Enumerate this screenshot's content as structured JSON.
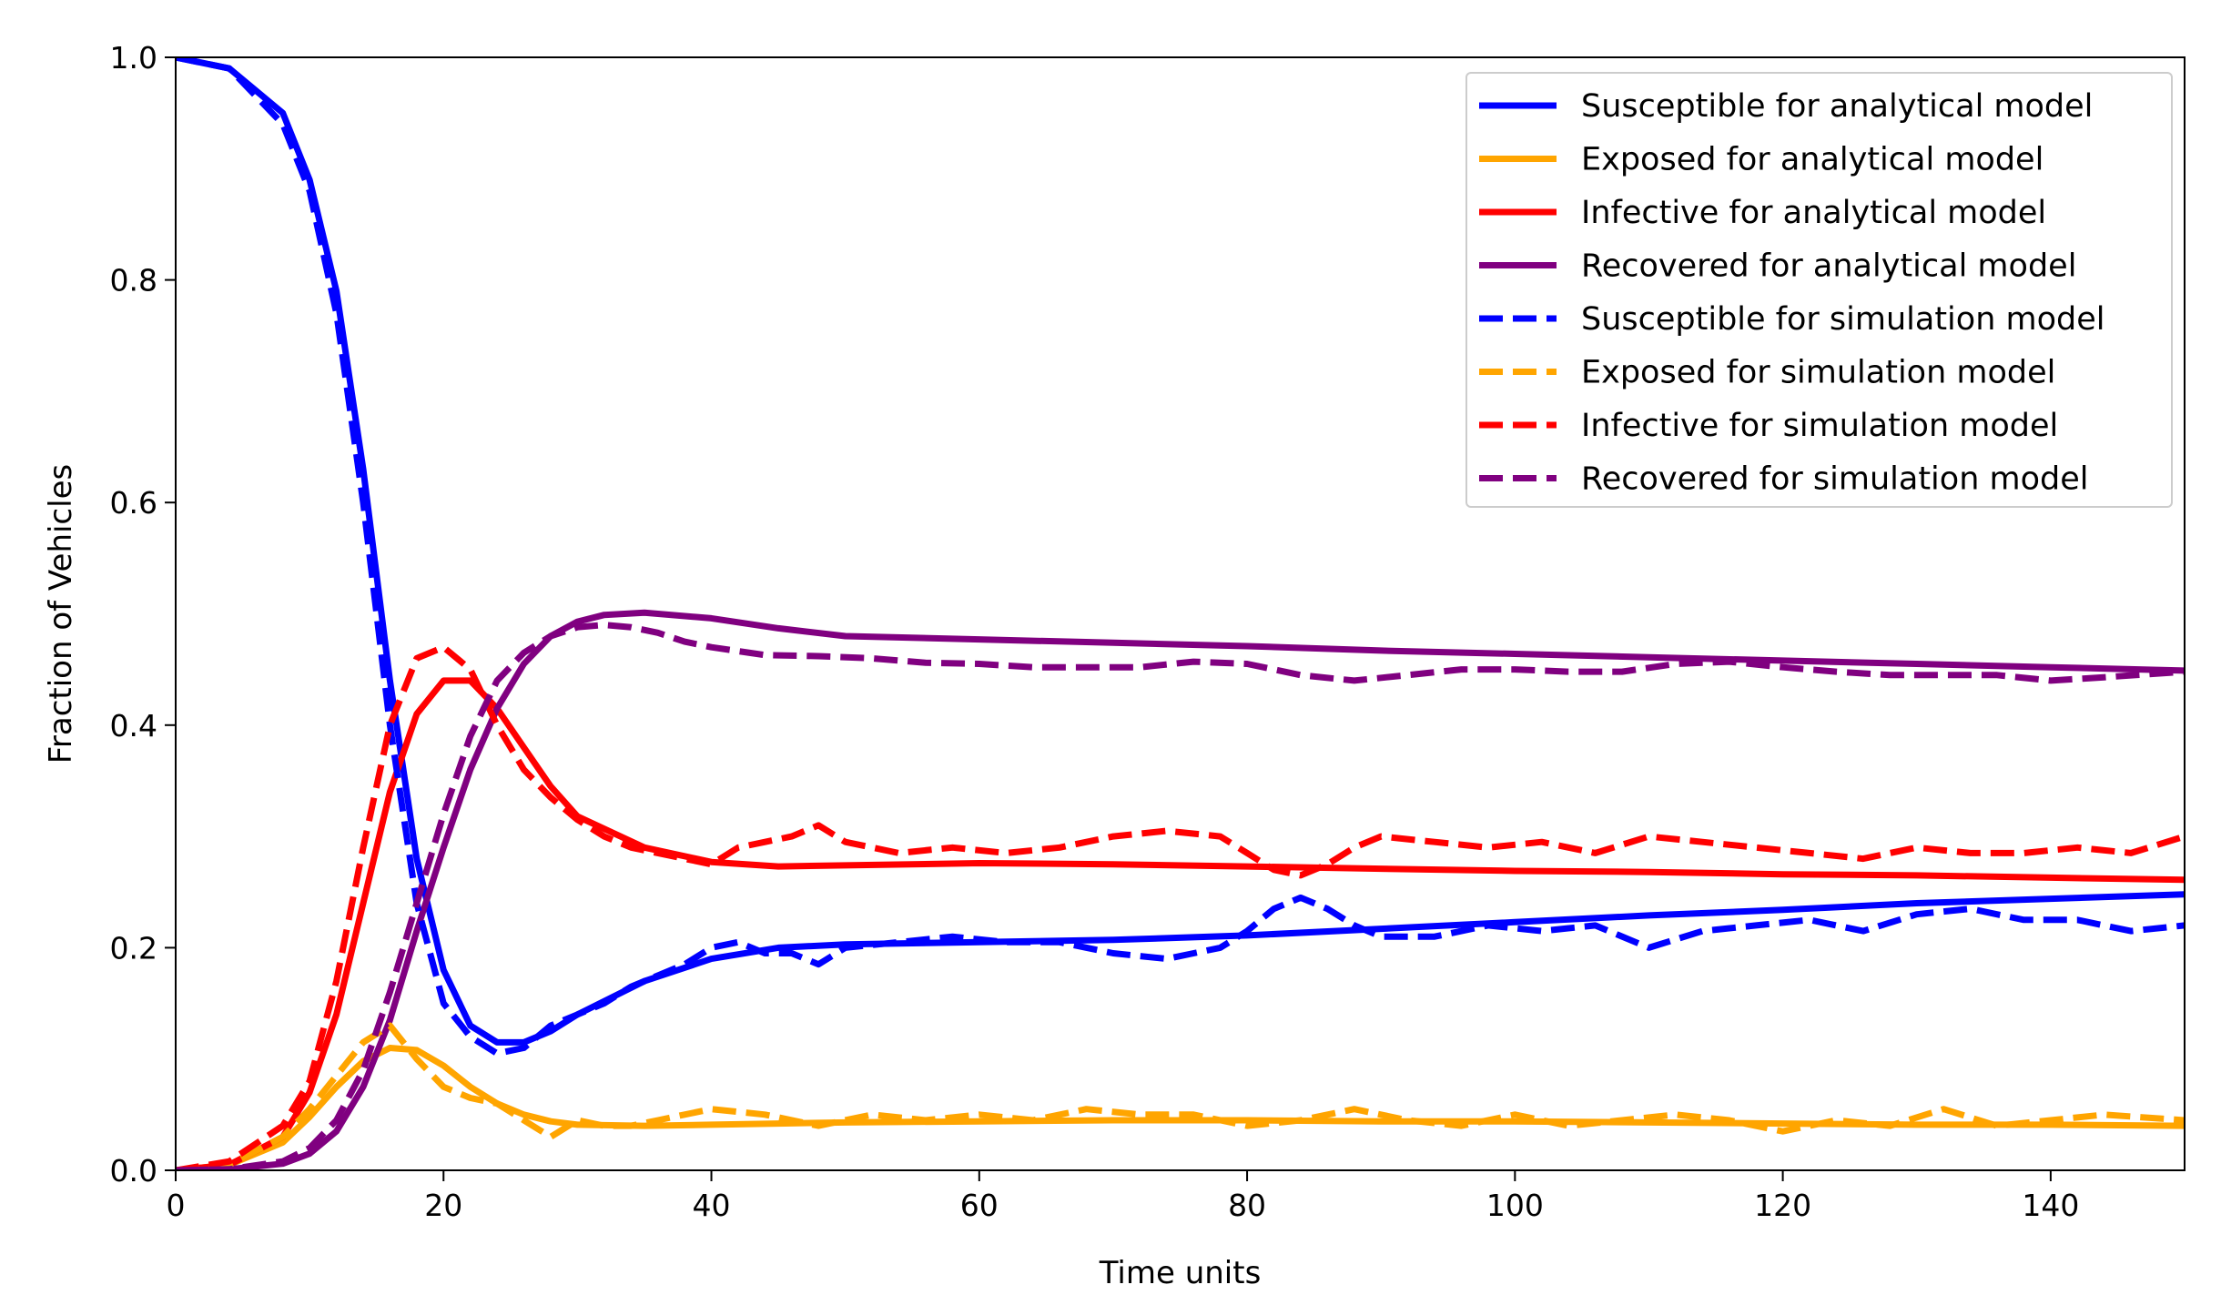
{
  "chart_data": {
    "type": "line",
    "title": "",
    "xlabel": "Time units",
    "ylabel": "Fraction of Vehicles",
    "xlim": [
      0,
      150
    ],
    "ylim": [
      0,
      1.0
    ],
    "xticks": [
      "0",
      "20",
      "40",
      "60",
      "80",
      "100",
      "120",
      "140"
    ],
    "xtick_values": [
      0,
      20,
      40,
      60,
      80,
      100,
      120,
      140
    ],
    "yticks": [
      "0.0",
      "0.2",
      "0.4",
      "0.6",
      "0.8",
      "1.0"
    ],
    "ytick_values": [
      0,
      0.2,
      0.4,
      0.6,
      0.8,
      1.0
    ],
    "grid": false,
    "legend_position": "top-right",
    "series": [
      {
        "name": "Susceptible for analytical model",
        "color": "#0000ff",
        "style": "solid",
        "x": [
          0,
          4,
          8,
          10,
          12,
          14,
          16,
          18,
          20,
          22,
          24,
          26,
          28,
          30,
          35,
          40,
          45,
          50,
          60,
          70,
          80,
          90,
          100,
          110,
          120,
          130,
          140,
          150
        ],
        "y": [
          1.0,
          0.99,
          0.95,
          0.89,
          0.79,
          0.63,
          0.44,
          0.28,
          0.18,
          0.13,
          0.115,
          0.115,
          0.125,
          0.14,
          0.17,
          0.19,
          0.2,
          0.203,
          0.205,
          0.207,
          0.211,
          0.217,
          0.223,
          0.229,
          0.234,
          0.24,
          0.244,
          0.248
        ]
      },
      {
        "name": "Exposed for analytical model",
        "color": "#ffa500",
        "style": "solid",
        "x": [
          0,
          4,
          8,
          10,
          12,
          14,
          16,
          18,
          20,
          22,
          24,
          26,
          28,
          30,
          35,
          40,
          45,
          50,
          60,
          70,
          80,
          90,
          100,
          110,
          120,
          130,
          140,
          150
        ],
        "y": [
          0,
          0.005,
          0.025,
          0.048,
          0.075,
          0.098,
          0.11,
          0.108,
          0.094,
          0.075,
          0.06,
          0.05,
          0.044,
          0.041,
          0.04,
          0.041,
          0.042,
          0.043,
          0.044,
          0.045,
          0.045,
          0.044,
          0.044,
          0.043,
          0.042,
          0.041,
          0.041,
          0.04
        ]
      },
      {
        "name": "Infective for analytical model",
        "color": "#ff0000",
        "style": "solid",
        "x": [
          0,
          4,
          8,
          10,
          12,
          14,
          16,
          18,
          20,
          22,
          24,
          26,
          28,
          30,
          35,
          40,
          45,
          50,
          60,
          70,
          80,
          90,
          100,
          110,
          120,
          130,
          140,
          150
        ],
        "y": [
          0,
          0.005,
          0.03,
          0.07,
          0.14,
          0.24,
          0.34,
          0.41,
          0.44,
          0.44,
          0.415,
          0.38,
          0.345,
          0.318,
          0.29,
          0.277,
          0.273,
          0.274,
          0.276,
          0.275,
          0.273,
          0.271,
          0.269,
          0.268,
          0.266,
          0.265,
          0.263,
          0.261
        ]
      },
      {
        "name": "Recovered for analytical model",
        "color": "#800080",
        "style": "solid",
        "x": [
          0,
          4,
          8,
          10,
          12,
          14,
          16,
          18,
          20,
          22,
          24,
          26,
          28,
          30,
          32,
          35,
          40,
          45,
          50,
          60,
          70,
          80,
          90,
          100,
          110,
          120,
          130,
          140,
          150
        ],
        "y": [
          0,
          0.001,
          0.006,
          0.015,
          0.035,
          0.075,
          0.135,
          0.215,
          0.29,
          0.36,
          0.415,
          0.455,
          0.48,
          0.493,
          0.499,
          0.501,
          0.496,
          0.487,
          0.48,
          0.477,
          0.474,
          0.471,
          0.467,
          0.464,
          0.461,
          0.458,
          0.455,
          0.452,
          0.449
        ]
      },
      {
        "name": "Susceptible for simulation model",
        "color": "#0000ff",
        "style": "dashed",
        "x": [
          0,
          4,
          8,
          10,
          12,
          14,
          16,
          18,
          20,
          22,
          24,
          26,
          28,
          30,
          32,
          34,
          36,
          38,
          40,
          42,
          44,
          46,
          48,
          50,
          54,
          58,
          62,
          66,
          70,
          74,
          78,
          80,
          82,
          84,
          86,
          88,
          90,
          94,
          98,
          102,
          106,
          110,
          114,
          118,
          122,
          126,
          130,
          134,
          138,
          142,
          146,
          150
        ],
        "y": [
          1.0,
          0.99,
          0.94,
          0.88,
          0.77,
          0.6,
          0.4,
          0.24,
          0.15,
          0.12,
          0.105,
          0.11,
          0.13,
          0.14,
          0.15,
          0.165,
          0.175,
          0.185,
          0.2,
          0.205,
          0.195,
          0.195,
          0.185,
          0.2,
          0.205,
          0.21,
          0.205,
          0.205,
          0.195,
          0.19,
          0.2,
          0.215,
          0.235,
          0.245,
          0.235,
          0.22,
          0.21,
          0.21,
          0.22,
          0.215,
          0.22,
          0.2,
          0.215,
          0.22,
          0.225,
          0.215,
          0.23,
          0.235,
          0.225,
          0.225,
          0.215,
          0.22
        ]
      },
      {
        "name": "Exposed for simulation model",
        "color": "#ffa500",
        "style": "dashed",
        "x": [
          0,
          4,
          8,
          10,
          12,
          14,
          16,
          18,
          20,
          22,
          24,
          26,
          28,
          30,
          32,
          34,
          36,
          38,
          40,
          44,
          48,
          52,
          56,
          60,
          64,
          68,
          72,
          76,
          80,
          84,
          88,
          92,
          96,
          100,
          104,
          108,
          112,
          116,
          120,
          124,
          128,
          132,
          136,
          140,
          144,
          150
        ],
        "y": [
          0,
          0.005,
          0.03,
          0.055,
          0.085,
          0.115,
          0.13,
          0.1,
          0.075,
          0.065,
          0.06,
          0.045,
          0.03,
          0.045,
          0.04,
          0.04,
          0.045,
          0.05,
          0.055,
          0.05,
          0.04,
          0.05,
          0.045,
          0.05,
          0.045,
          0.055,
          0.05,
          0.05,
          0.04,
          0.045,
          0.055,
          0.045,
          0.04,
          0.05,
          0.04,
          0.045,
          0.05,
          0.045,
          0.035,
          0.045,
          0.04,
          0.055,
          0.04,
          0.045,
          0.05,
          0.045
        ]
      },
      {
        "name": "Infective for simulation model",
        "color": "#ff0000",
        "style": "dashed",
        "x": [
          0,
          4,
          8,
          10,
          12,
          14,
          16,
          18,
          20,
          22,
          24,
          26,
          28,
          30,
          32,
          34,
          36,
          38,
          40,
          42,
          44,
          46,
          48,
          50,
          54,
          58,
          62,
          66,
          70,
          74,
          78,
          80,
          82,
          84,
          86,
          88,
          90,
          94,
          98,
          102,
          106,
          110,
          114,
          118,
          122,
          126,
          130,
          134,
          138,
          142,
          146,
          150
        ],
        "y": [
          0,
          0.008,
          0.04,
          0.08,
          0.17,
          0.29,
          0.4,
          0.46,
          0.47,
          0.45,
          0.4,
          0.36,
          0.335,
          0.315,
          0.3,
          0.29,
          0.285,
          0.28,
          0.275,
          0.29,
          0.295,
          0.3,
          0.31,
          0.295,
          0.285,
          0.29,
          0.285,
          0.29,
          0.3,
          0.305,
          0.3,
          0.285,
          0.27,
          0.265,
          0.275,
          0.29,
          0.3,
          0.295,
          0.29,
          0.295,
          0.285,
          0.3,
          0.295,
          0.29,
          0.285,
          0.28,
          0.29,
          0.285,
          0.285,
          0.29,
          0.285,
          0.3
        ]
      },
      {
        "name": "Recovered for simulation model",
        "color": "#800080",
        "style": "dashed",
        "x": [
          0,
          4,
          8,
          10,
          12,
          14,
          16,
          18,
          20,
          22,
          24,
          26,
          28,
          30,
          32,
          34,
          36,
          38,
          40,
          44,
          48,
          52,
          56,
          60,
          64,
          68,
          72,
          76,
          80,
          84,
          88,
          92,
          96,
          100,
          104,
          108,
          112,
          116,
          120,
          124,
          128,
          132,
          136,
          140,
          144,
          150
        ],
        "y": [
          0,
          0.001,
          0.008,
          0.02,
          0.045,
          0.09,
          0.16,
          0.24,
          0.32,
          0.39,
          0.44,
          0.465,
          0.48,
          0.488,
          0.49,
          0.488,
          0.483,
          0.475,
          0.47,
          0.463,
          0.462,
          0.46,
          0.456,
          0.455,
          0.452,
          0.452,
          0.452,
          0.457,
          0.455,
          0.445,
          0.44,
          0.445,
          0.45,
          0.45,
          0.448,
          0.448,
          0.455,
          0.457,
          0.452,
          0.448,
          0.445,
          0.445,
          0.445,
          0.44,
          0.443,
          0.448
        ]
      }
    ]
  }
}
